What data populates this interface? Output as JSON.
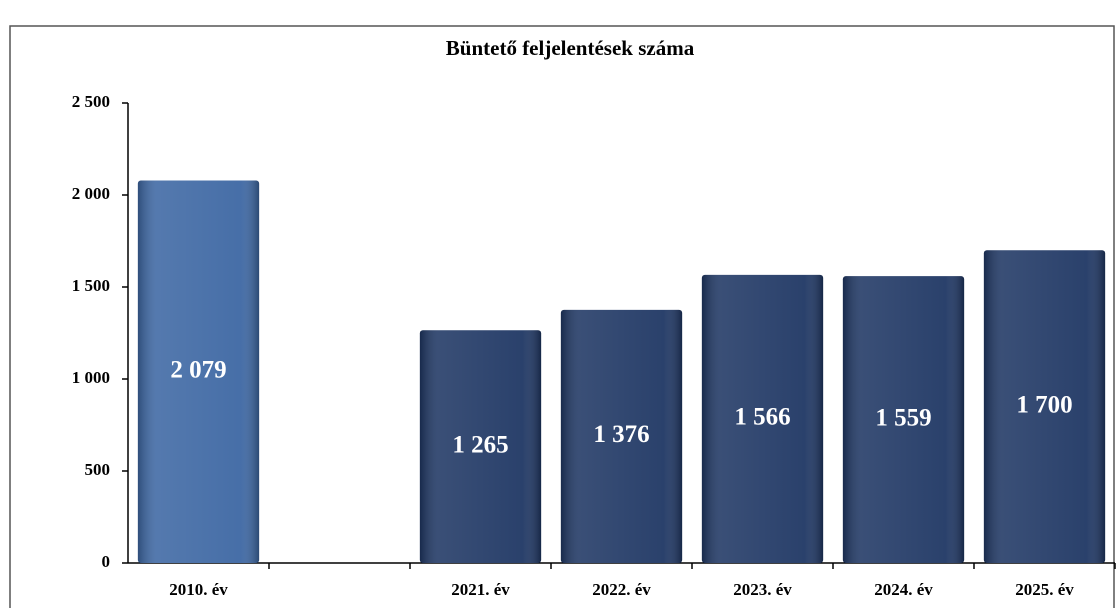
{
  "chart_data": {
    "type": "bar",
    "title": "Büntető feljelentések száma",
    "categories": [
      "2010. év",
      null,
      "2021. év",
      "2022. év",
      "2023. év",
      "2024. év",
      "2025. év"
    ],
    "values": [
      2079,
      null,
      1265,
      1376,
      1566,
      1559,
      1700
    ],
    "value_labels": [
      "2 079",
      null,
      "1 265",
      "1 376",
      "1 566",
      "1 559",
      "1 700"
    ],
    "colors": [
      "#3d67a3",
      null,
      "#1f3764",
      "#1f3764",
      "#1f3764",
      "#1f3764",
      "#1f3764"
    ],
    "ylim": [
      0,
      2500
    ],
    "yticks": [
      0,
      500,
      {
        "value": 1000,
        "label": "1 000"
      },
      {
        "value": 1500,
        "label": "1 500"
      },
      {
        "value": 2000,
        "label": "2 000"
      },
      {
        "value": 2500,
        "label": "2 500"
      }
    ],
    "grid": false
  }
}
